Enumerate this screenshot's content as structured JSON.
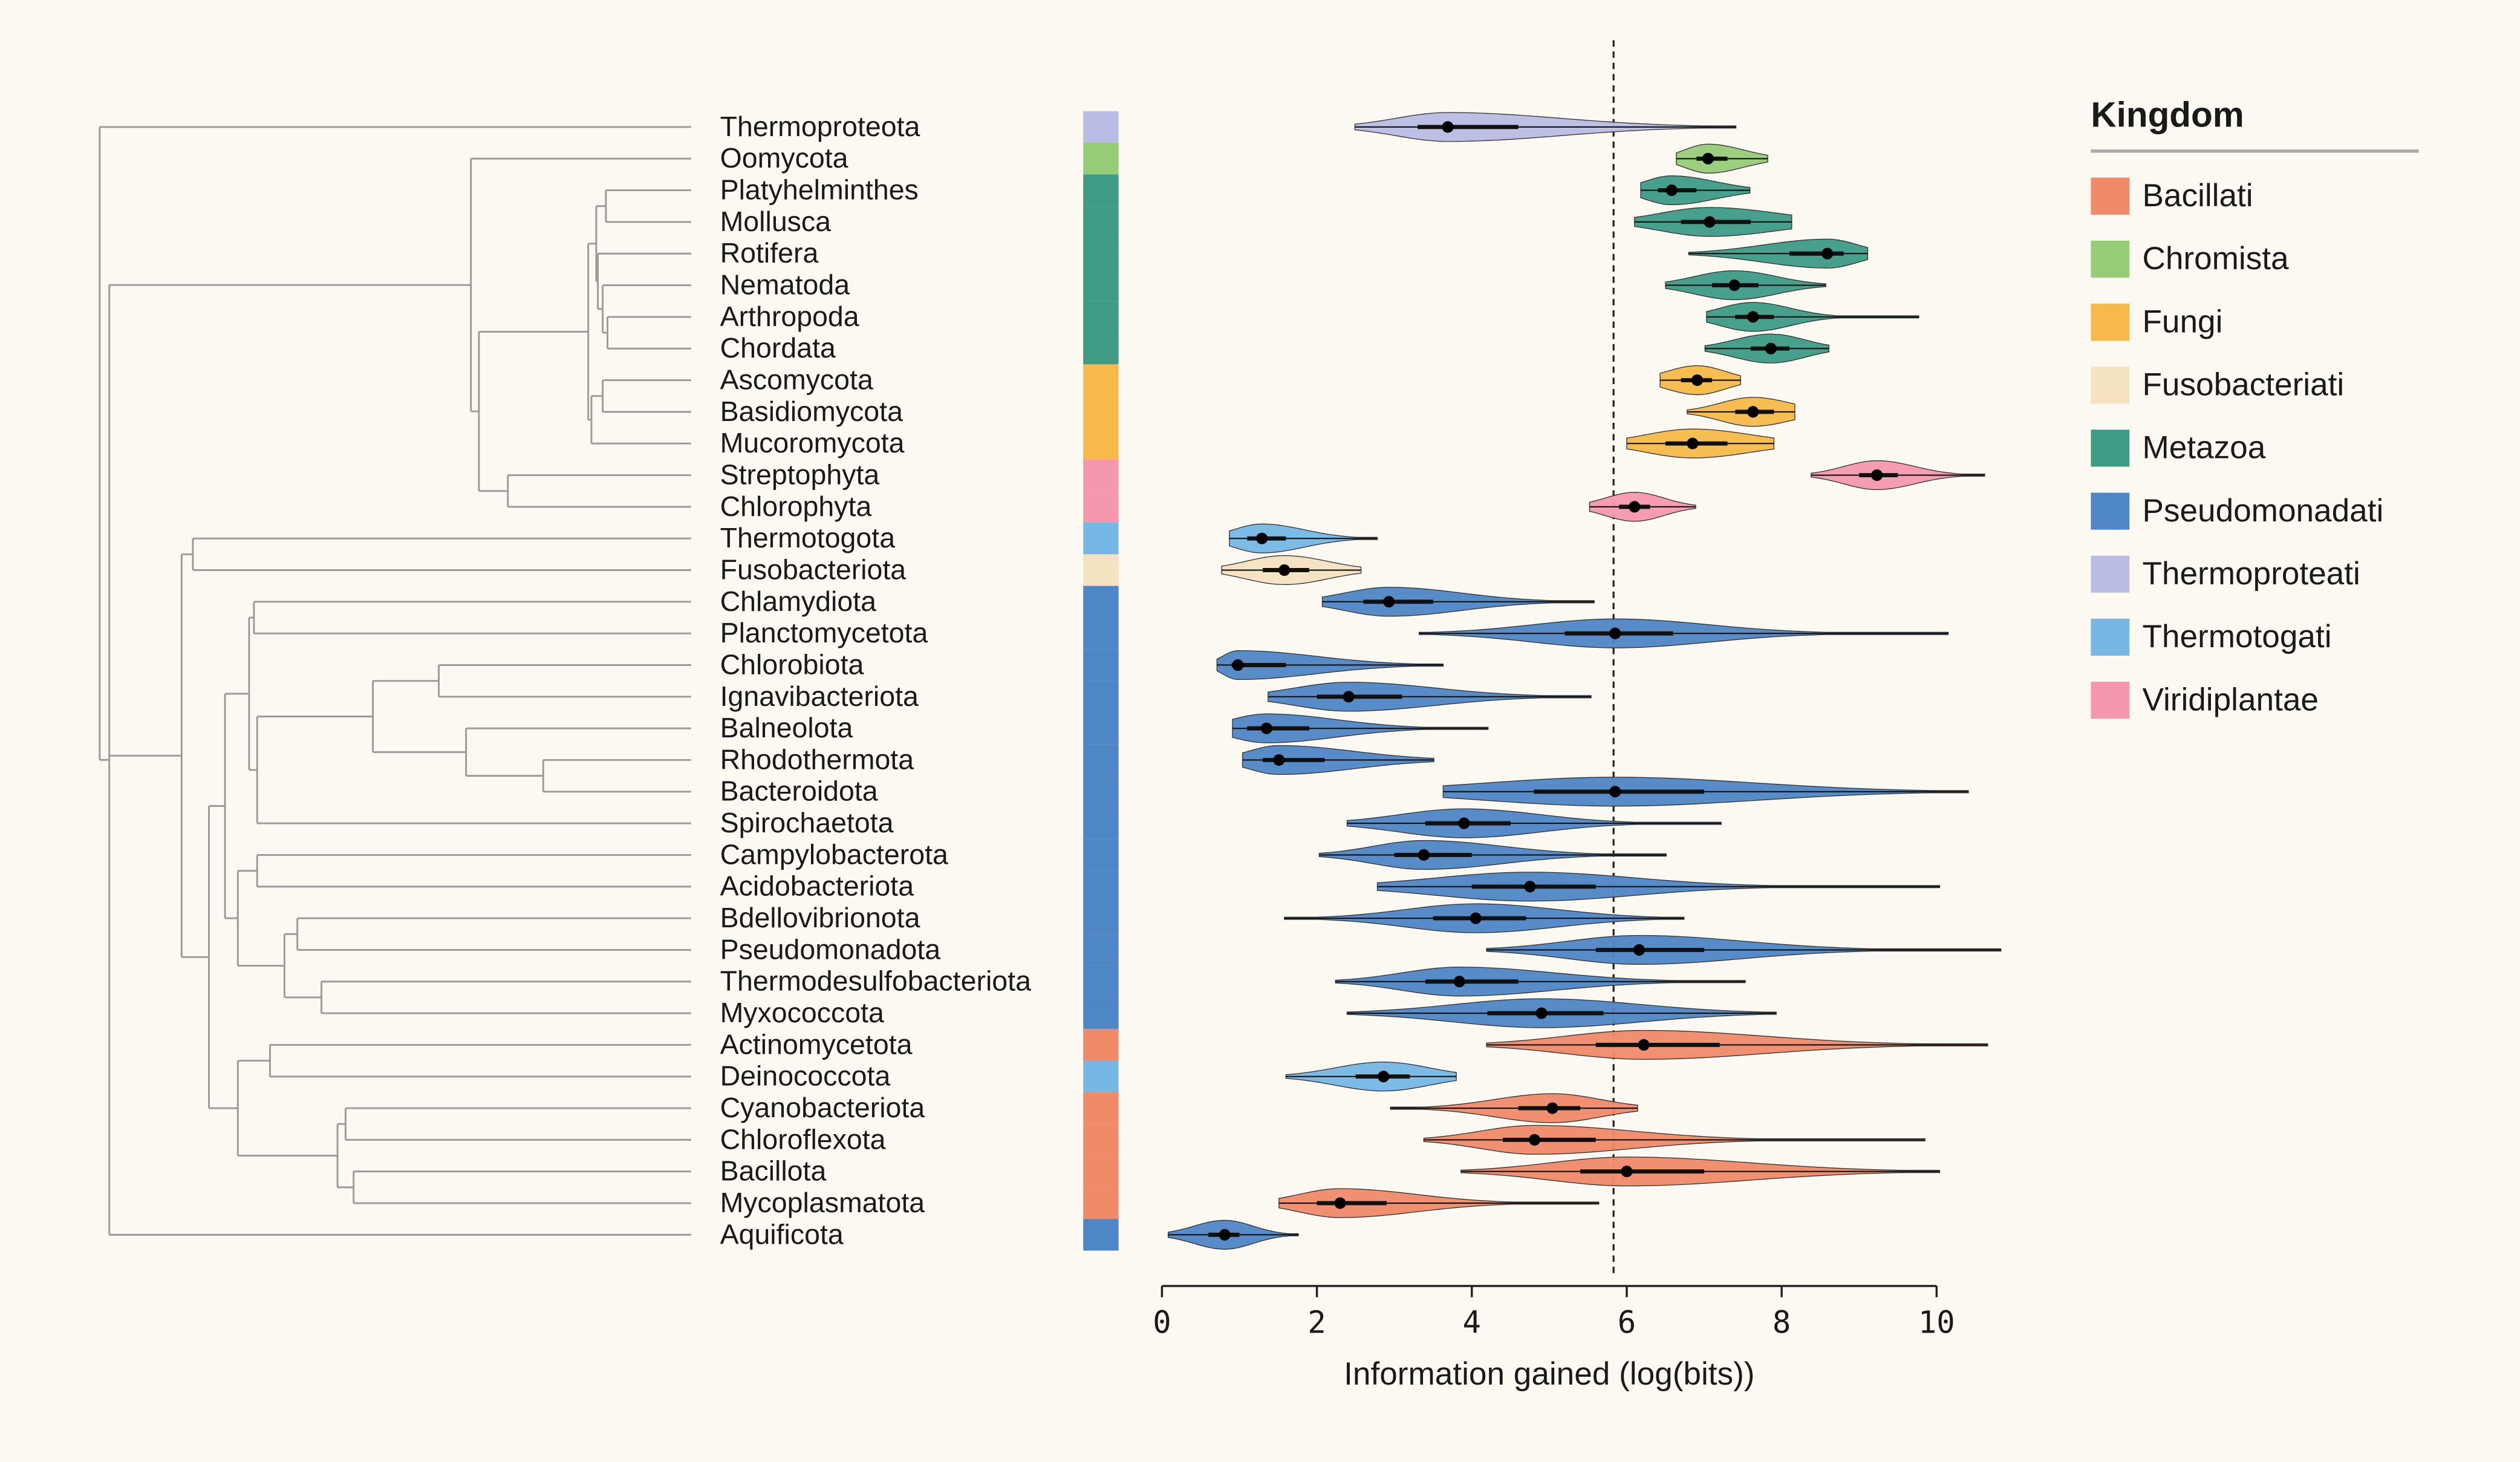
{
  "chart_data": {
    "type": "violin",
    "xlabel": "Information gained (log(bits))",
    "xlim": [
      0,
      10
    ],
    "xticks": [
      0,
      2,
      4,
      6,
      8,
      10
    ],
    "reference_line": 5.83,
    "legend_title": "Kingdom",
    "legend": "right",
    "kingdoms": [
      {
        "name": "Bacillati",
        "color": "#f08a68"
      },
      {
        "name": "Chromista",
        "color": "#96cc78"
      },
      {
        "name": "Fungi",
        "color": "#f6b94a"
      },
      {
        "name": "Fusobacteriati",
        "color": "#f4e2c0"
      },
      {
        "name": "Metazoa",
        "color": "#3d9b86"
      },
      {
        "name": "Pseudomonadati",
        "color": "#4e86c6"
      },
      {
        "name": "Thermoproteati",
        "color": "#b9bde3"
      },
      {
        "name": "Thermotogati",
        "color": "#76b7e6"
      },
      {
        "name": "Viridiplantae",
        "color": "#f598ae"
      }
    ],
    "rows": [
      {
        "name": "Thermoproteota",
        "kingdom": "Thermoproteati",
        "min": 2.49,
        "q1": 3.3,
        "median": 3.69,
        "q3": 4.6,
        "max": 7.41
      },
      {
        "name": "Oomycota",
        "kingdom": "Chromista",
        "min": 6.64,
        "q1": 6.9,
        "median": 7.05,
        "q3": 7.3,
        "max": 7.82
      },
      {
        "name": "Platyhelminthes",
        "kingdom": "Metazoa",
        "min": 6.18,
        "q1": 6.4,
        "median": 6.58,
        "q3": 6.9,
        "max": 7.59
      },
      {
        "name": "Mollusca",
        "kingdom": "Metazoa",
        "min": 6.1,
        "q1": 6.7,
        "median": 7.07,
        "q3": 7.6,
        "max": 8.13
      },
      {
        "name": "Rotifera",
        "kingdom": "Metazoa",
        "min": 6.8,
        "q1": 8.1,
        "median": 8.59,
        "q3": 8.8,
        "max": 9.11
      },
      {
        "name": "Nematoda",
        "kingdom": "Metazoa",
        "min": 6.5,
        "q1": 7.1,
        "median": 7.39,
        "q3": 7.7,
        "max": 8.57
      },
      {
        "name": "Arthropoda",
        "kingdom": "Metazoa",
        "min": 7.03,
        "q1": 7.4,
        "median": 7.63,
        "q3": 7.9,
        "max": 9.77
      },
      {
        "name": "Chordata",
        "kingdom": "Metazoa",
        "min": 7.01,
        "q1": 7.6,
        "median": 7.86,
        "q3": 8.1,
        "max": 8.61
      },
      {
        "name": "Ascomycota",
        "kingdom": "Fungi",
        "min": 6.43,
        "q1": 6.7,
        "median": 6.91,
        "q3": 7.1,
        "max": 7.47
      },
      {
        "name": "Basidiomycota",
        "kingdom": "Fungi",
        "min": 6.78,
        "q1": 7.4,
        "median": 7.63,
        "q3": 7.9,
        "max": 8.17
      },
      {
        "name": "Mucoromycota",
        "kingdom": "Fungi",
        "min": 6.0,
        "q1": 6.5,
        "median": 6.85,
        "q3": 7.3,
        "max": 7.9
      },
      {
        "name": "Streptophyta",
        "kingdom": "Viridiplantae",
        "min": 8.38,
        "q1": 9.0,
        "median": 9.23,
        "q3": 9.5,
        "max": 10.62
      },
      {
        "name": "Chlorophyta",
        "kingdom": "Viridiplantae",
        "min": 5.52,
        "q1": 5.9,
        "median": 6.1,
        "q3": 6.3,
        "max": 6.89
      },
      {
        "name": "Thermotogota",
        "kingdom": "Thermotogati",
        "min": 0.87,
        "q1": 1.1,
        "median": 1.29,
        "q3": 1.6,
        "max": 2.78
      },
      {
        "name": "Fusobacteriota",
        "kingdom": "Fusobacteriati",
        "min": 0.77,
        "q1": 1.3,
        "median": 1.58,
        "q3": 1.9,
        "max": 2.57
      },
      {
        "name": "Chlamydiota",
        "kingdom": "Pseudomonadati",
        "min": 2.07,
        "q1": 2.6,
        "median": 2.93,
        "q3": 3.5,
        "max": 5.58
      },
      {
        "name": "Planctomycetota",
        "kingdom": "Pseudomonadati",
        "min": 3.32,
        "q1": 5.2,
        "median": 5.85,
        "q3": 6.6,
        "max": 10.15
      },
      {
        "name": "Chlorobiota",
        "kingdom": "Pseudomonadati",
        "min": 0.71,
        "q1": 0.9,
        "median": 0.98,
        "q3": 1.6,
        "max": 3.63
      },
      {
        "name": "Ignavibacteriota",
        "kingdom": "Pseudomonadati",
        "min": 1.37,
        "q1": 2.0,
        "median": 2.41,
        "q3": 3.1,
        "max": 5.54
      },
      {
        "name": "Balneolota",
        "kingdom": "Pseudomonadati",
        "min": 0.91,
        "q1": 1.1,
        "median": 1.35,
        "q3": 1.9,
        "max": 4.21
      },
      {
        "name": "Rhodothermota",
        "kingdom": "Pseudomonadati",
        "min": 1.04,
        "q1": 1.3,
        "median": 1.51,
        "q3": 2.1,
        "max": 3.51
      },
      {
        "name": "Bacteroidota",
        "kingdom": "Pseudomonadati",
        "min": 3.63,
        "q1": 4.8,
        "median": 5.85,
        "q3": 7.0,
        "max": 10.41
      },
      {
        "name": "Spirochaetota",
        "kingdom": "Pseudomonadati",
        "min": 2.39,
        "q1": 3.4,
        "median": 3.9,
        "q3": 4.5,
        "max": 7.22
      },
      {
        "name": "Campylobacterota",
        "kingdom": "Pseudomonadati",
        "min": 2.03,
        "q1": 3.0,
        "median": 3.38,
        "q3": 4.0,
        "max": 6.51
      },
      {
        "name": "Acidobacteriota",
        "kingdom": "Pseudomonadati",
        "min": 2.78,
        "q1": 4.0,
        "median": 4.75,
        "q3": 5.6,
        "max": 10.04
      },
      {
        "name": "Bdellovibrionota",
        "kingdom": "Pseudomonadati",
        "min": 1.58,
        "q1": 3.5,
        "median": 4.05,
        "q3": 4.7,
        "max": 6.74
      },
      {
        "name": "Pseudomonadota",
        "kingdom": "Pseudomonadati",
        "min": 4.19,
        "q1": 5.6,
        "median": 6.16,
        "q3": 7.0,
        "max": 10.83
      },
      {
        "name": "Thermodesulfobacteriota",
        "kingdom": "Pseudomonadati",
        "min": 2.24,
        "q1": 3.4,
        "median": 3.84,
        "q3": 4.6,
        "max": 7.53
      },
      {
        "name": "Myxococcota",
        "kingdom": "Pseudomonadati",
        "min": 2.39,
        "q1": 4.2,
        "median": 4.9,
        "q3": 5.7,
        "max": 7.93
      },
      {
        "name": "Actinomycetota",
        "kingdom": "Bacillati",
        "min": 4.19,
        "q1": 5.6,
        "median": 6.22,
        "q3": 7.2,
        "max": 10.66
      },
      {
        "name": "Deinococcota",
        "kingdom": "Thermotogati",
        "min": 1.6,
        "q1": 2.5,
        "median": 2.86,
        "q3": 3.2,
        "max": 3.8
      },
      {
        "name": "Cyanobacteriota",
        "kingdom": "Bacillati",
        "min": 2.95,
        "q1": 4.6,
        "median": 5.04,
        "q3": 5.4,
        "max": 6.14
      },
      {
        "name": "Chloroflexota",
        "kingdom": "Bacillati",
        "min": 3.38,
        "q1": 4.4,
        "median": 4.81,
        "q3": 5.6,
        "max": 9.85
      },
      {
        "name": "Bacillota",
        "kingdom": "Bacillati",
        "min": 3.86,
        "q1": 5.4,
        "median": 6.0,
        "q3": 7.0,
        "max": 10.04
      },
      {
        "name": "Mycoplasmatota",
        "kingdom": "Bacillati",
        "min": 1.51,
        "q1": 2.0,
        "median": 2.3,
        "q3": 2.9,
        "max": 5.64
      },
      {
        "name": "Aquificota",
        "kingdom": "Pseudomonadati",
        "min": 0.08,
        "q1": 0.6,
        "median": 0.81,
        "q3": 1.0,
        "max": 1.76
      }
    ]
  }
}
